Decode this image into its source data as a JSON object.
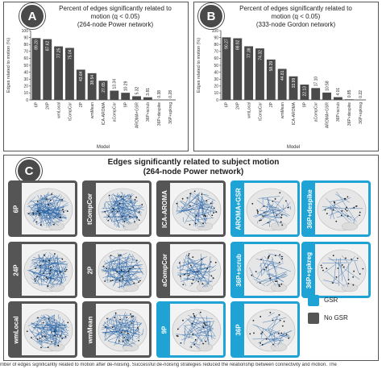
{
  "panels": {
    "a": {
      "letter": "A",
      "title_line1": "Percent of edges significantly related to",
      "title_line2": "motion (q < 0.05)",
      "title_line3": "(264-node Power network)",
      "ylabel": "Edges related to motion (%)",
      "xlabel": "Model"
    },
    "b": {
      "letter": "B",
      "title_line1": "Percent of edges significantly related to",
      "title_line2": "motion (q < 0.05)",
      "title_line3": "(333-node Gordon network)",
      "ylabel": "Edges related to motion (%)",
      "xlabel": "Model"
    },
    "c": {
      "letter": "C",
      "title_line1": "Edges significantly related to subject motion",
      "title_line2": "(264-node Power network)"
    }
  },
  "chart_data": [
    {
      "type": "bar",
      "title": "Percent of edges significantly related to motion (q < 0.05) (264-node Power network)",
      "xlabel": "Model",
      "ylabel": "Edges related to motion (%)",
      "ylim": [
        0,
        100
      ],
      "yticks": [
        0,
        10,
        20,
        30,
        40,
        50,
        60,
        70,
        80,
        90,
        100
      ],
      "categories": [
        "6P",
        "24P",
        "wmLocal",
        "tCompCor",
        "2P",
        "wmMean",
        "ICA-AROMA",
        "aCompCor",
        "9P",
        "AROMA+GSR",
        "36P+scrub",
        "36P+despike",
        "36P+spkreg"
      ],
      "values": [
        89.2,
        87.62,
        77.25,
        75.04,
        43.64,
        38.54,
        27.65,
        13.34,
        10.29,
        5.32,
        3.81,
        0.38,
        0.28
      ],
      "data_labels": [
        "89.20",
        "87.62",
        "77.25",
        "75.04",
        "43.64",
        "38.54",
        "27.65",
        "13.34",
        "10.29",
        "5.32",
        "3.81",
        "0.38",
        "0.28"
      ]
    },
    {
      "type": "bar",
      "title": "Percent of edges significantly related to motion (q < 0.05) (333-node Gordon network)",
      "xlabel": "Model",
      "ylabel": "Edges related to motion (%)",
      "ylim": [
        0,
        100
      ],
      "yticks": [
        0,
        10,
        20,
        30,
        40,
        50,
        60,
        70,
        80,
        90,
        100
      ],
      "categories": [
        "6P",
        "24P",
        "wmLocal",
        "tCompCor",
        "2P",
        "wmMean",
        "ICA-AROMA",
        "9P",
        "aCompCor",
        "AROMA+GSR",
        "36P+scrub",
        "36P+despike",
        "36P+spkreg"
      ],
      "values": [
        90.27,
        88.92,
        77.38,
        74.32,
        58.29,
        44.81,
        33.99,
        22.13,
        17.1,
        10.58,
        4.01,
        0.85,
        0.22
      ],
      "data_labels": [
        "90.27",
        "88.92",
        "77.38",
        "74.32",
        "58.29",
        "44.81",
        "33.99",
        "22.13",
        "17.10",
        "10.58",
        "4.01",
        "0.85",
        "0.22"
      ]
    }
  ],
  "brain_grid": [
    {
      "label": "6P",
      "type": "nogsr",
      "density": 0.95
    },
    {
      "label": "tCompCor",
      "type": "nogsr",
      "density": 0.9
    },
    {
      "label": "ICA-AROMA",
      "type": "nogsr",
      "density": 0.6
    },
    {
      "label": "AROMA+GSR",
      "type": "gsr",
      "density": 0.3
    },
    {
      "label": "36P+despike",
      "type": "gsr",
      "density": 0.12
    },
    {
      "label": "24P",
      "type": "nogsr",
      "density": 0.95
    },
    {
      "label": "2P",
      "type": "nogsr",
      "density": 0.8
    },
    {
      "label": "aCompCor",
      "type": "nogsr",
      "density": 0.45
    },
    {
      "label": "36P+scrub",
      "type": "gsr",
      "density": 0.25
    },
    {
      "label": "36P+spkreg",
      "type": "gsr",
      "density": 0.08
    },
    {
      "label": "wmLocal",
      "type": "nogsr",
      "density": 0.9
    },
    {
      "label": "wmMean",
      "type": "nogsr",
      "density": 0.75
    },
    {
      "label": "9P",
      "type": "gsr",
      "density": 0.35
    },
    {
      "label": "36P",
      "type": "gsr",
      "density": 0.2
    }
  ],
  "legend": {
    "gsr_label": "GSR",
    "nogsr_label": "No GSR"
  },
  "colors": {
    "gsr": "#1fa3d4",
    "nogsr": "#555555",
    "bar": "#4a4a4a",
    "brain_edge": "#1a5aa0"
  },
  "caption": "mber of edges significantly related to motion after de-noising. Successful de-noising strategies reduced the relationship between connectivity and motion. The"
}
